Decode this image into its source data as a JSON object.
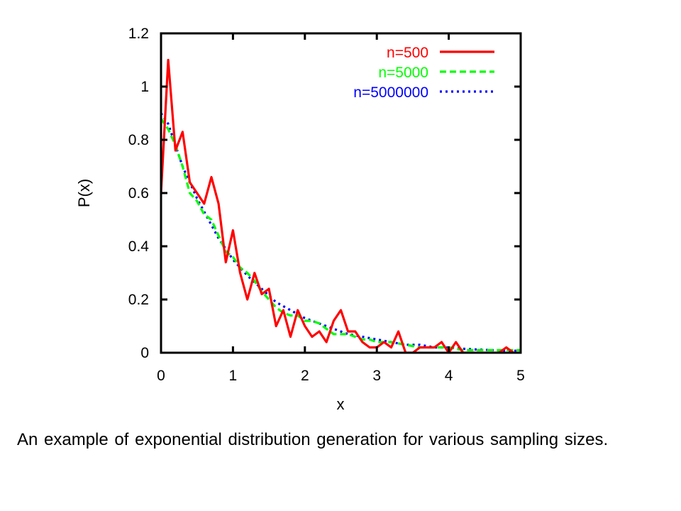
{
  "caption": "An example of exponential distribution generation for various sampling sizes.",
  "chart_data": {
    "type": "line",
    "title": "",
    "xlabel": "x",
    "ylabel": "P(x)",
    "xlim": [
      0,
      5
    ],
    "ylim": [
      0,
      1.2
    ],
    "x_ticks": [
      "0",
      "1",
      "2",
      "3",
      "4",
      "5"
    ],
    "y_ticks": [
      "0",
      "0.2",
      "0.4",
      "0.6",
      "0.8",
      "1",
      "1.2"
    ],
    "grid": false,
    "legend_position": "top-right",
    "series": [
      {
        "name": "n=500",
        "color": "#ff0000",
        "dash": "solid",
        "x": [
          0.0,
          0.1,
          0.2,
          0.3,
          0.4,
          0.5,
          0.6,
          0.7,
          0.8,
          0.9,
          1.0,
          1.1,
          1.2,
          1.3,
          1.4,
          1.5,
          1.6,
          1.7,
          1.8,
          1.9,
          2.0,
          2.1,
          2.2,
          2.3,
          2.4,
          2.5,
          2.6,
          2.7,
          2.8,
          2.9,
          3.0,
          3.1,
          3.2,
          3.3,
          3.4,
          3.5,
          3.6,
          3.7,
          3.8,
          3.9,
          4.0,
          4.1,
          4.2,
          4.3,
          4.4,
          4.5,
          4.6,
          4.7,
          4.8,
          4.9,
          5.0
        ],
        "y": [
          0.6,
          1.1,
          0.76,
          0.83,
          0.64,
          0.6,
          0.56,
          0.66,
          0.56,
          0.34,
          0.46,
          0.3,
          0.2,
          0.3,
          0.22,
          0.24,
          0.1,
          0.16,
          0.06,
          0.16,
          0.1,
          0.06,
          0.08,
          0.04,
          0.12,
          0.16,
          0.08,
          0.08,
          0.04,
          0.02,
          0.02,
          0.04,
          0.02,
          0.08,
          0.0,
          0.0,
          0.02,
          0.02,
          0.02,
          0.04,
          0.0,
          0.04,
          0.0,
          0.0,
          0.0,
          0.0,
          0.0,
          0.0,
          0.02,
          0.0,
          0.0
        ]
      },
      {
        "name": "n=5000",
        "color": "#00ff00",
        "dash": "dashed",
        "x": [
          0.0,
          0.1,
          0.2,
          0.3,
          0.4,
          0.5,
          0.6,
          0.7,
          0.8,
          0.9,
          1.0,
          1.1,
          1.2,
          1.3,
          1.4,
          1.5,
          1.6,
          1.7,
          1.8,
          1.9,
          2.0,
          2.1,
          2.2,
          2.3,
          2.4,
          2.5,
          2.6,
          2.7,
          2.8,
          2.9,
          3.0,
          3.2,
          3.4,
          3.6,
          3.8,
          4.0,
          4.2,
          4.4,
          4.6,
          4.8,
          5.0
        ],
        "y": [
          0.88,
          0.84,
          0.78,
          0.7,
          0.6,
          0.57,
          0.52,
          0.5,
          0.44,
          0.38,
          0.36,
          0.32,
          0.3,
          0.27,
          0.23,
          0.2,
          0.17,
          0.15,
          0.14,
          0.14,
          0.12,
          0.12,
          0.11,
          0.09,
          0.07,
          0.07,
          0.07,
          0.06,
          0.05,
          0.05,
          0.04,
          0.04,
          0.03,
          0.02,
          0.02,
          0.02,
          0.01,
          0.01,
          0.01,
          0.01,
          0.01
        ]
      },
      {
        "name": "n=5000000",
        "color": "#0000ff",
        "dash": "dotted",
        "x": [
          0.0,
          0.1,
          0.2,
          0.3,
          0.4,
          0.5,
          0.6,
          0.7,
          0.8,
          0.9,
          1.0,
          1.2,
          1.4,
          1.6,
          1.8,
          2.0,
          2.2,
          2.4,
          2.6,
          2.8,
          3.0,
          3.2,
          3.4,
          3.6,
          3.8,
          4.0,
          4.2,
          4.4,
          4.6,
          4.8,
          5.0
        ],
        "y": [
          0.9,
          0.86,
          0.78,
          0.7,
          0.64,
          0.58,
          0.53,
          0.48,
          0.43,
          0.39,
          0.35,
          0.29,
          0.24,
          0.19,
          0.16,
          0.13,
          0.11,
          0.09,
          0.07,
          0.06,
          0.05,
          0.04,
          0.03,
          0.03,
          0.02,
          0.02,
          0.015,
          0.012,
          0.01,
          0.008,
          0.007
        ]
      }
    ]
  }
}
